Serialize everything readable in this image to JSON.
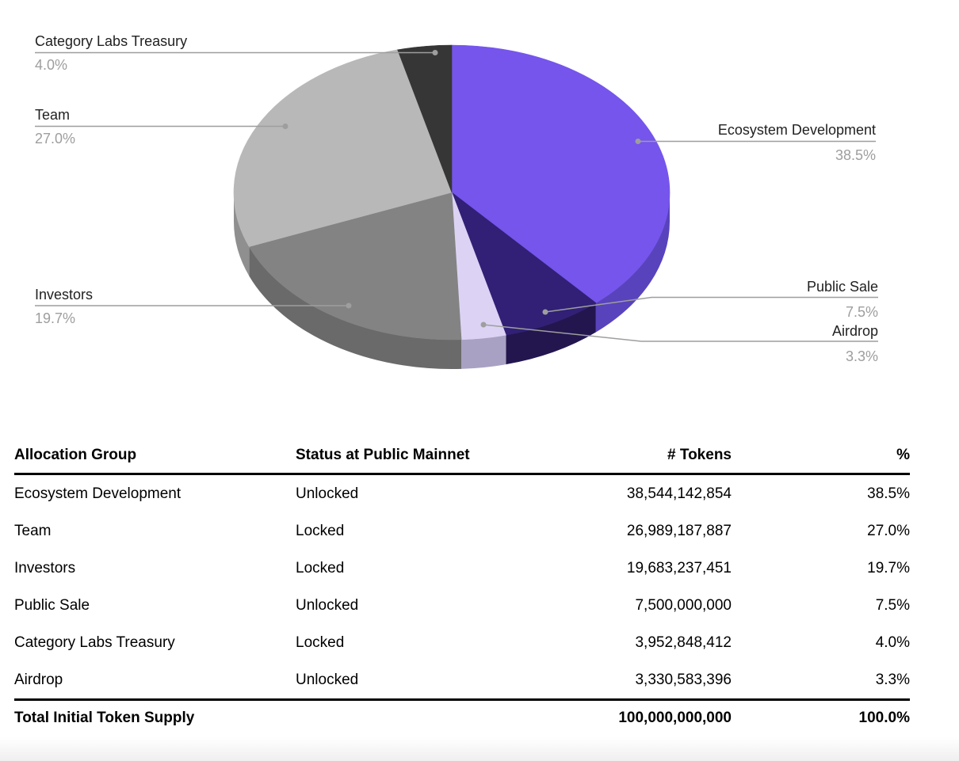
{
  "chart_data": {
    "type": "pie",
    "style": "3d",
    "start_angle": "top",
    "direction": "clockwise",
    "legend_position": "outside-labeled",
    "label_color": "#212121",
    "percent_color": "#9e9e9e",
    "leader_line_color": "#9e9e9e",
    "slices": [
      {
        "label": "Ecosystem Development",
        "percent": 38.5,
        "display_percent": "38.5%",
        "color": "#7555EC",
        "side_color": "#5943BC"
      },
      {
        "label": "Public Sale",
        "percent": 7.5,
        "display_percent": "7.5%",
        "color": "#312075",
        "side_color": "#23164F"
      },
      {
        "label": "Airdrop",
        "percent": 3.3,
        "display_percent": "3.3%",
        "color": "#DCD3F4",
        "side_color": "#A9A1C3"
      },
      {
        "label": "Investors",
        "percent": 19.7,
        "display_percent": "19.7%",
        "color": "#838383",
        "side_color": "#6A6A6A"
      },
      {
        "label": "Team",
        "percent": 27.0,
        "display_percent": "27.0%",
        "color": "#B8B8B8",
        "side_color": "#8F8F8F"
      },
      {
        "label": "Category Labs Treasury",
        "percent": 4.0,
        "display_percent": "4.0%",
        "color": "#363636",
        "side_color": "#2B2B2B"
      }
    ]
  },
  "table": {
    "columns": [
      "Allocation Group",
      "Status at Public Mainnet",
      "# Tokens",
      "%"
    ],
    "rows": [
      [
        "Ecosystem Development",
        "Unlocked",
        "38,544,142,854",
        "38.5%"
      ],
      [
        "Team",
        "Locked",
        "26,989,187,887",
        "27.0%"
      ],
      [
        "Investors",
        "Locked",
        "19,683,237,451",
        "19.7%"
      ],
      [
        "Public Sale",
        "Unlocked",
        "7,500,000,000",
        "7.5%"
      ],
      [
        "Category Labs Treasury",
        "Locked",
        "3,952,848,412",
        "4.0%"
      ],
      [
        "Airdrop",
        "Unlocked",
        "3,330,583,396",
        "3.3%"
      ]
    ],
    "total_row": {
      "label": "Total Initial Token Supply",
      "status": "",
      "tokens": "100,000,000,000",
      "percent": "100.0%"
    }
  }
}
